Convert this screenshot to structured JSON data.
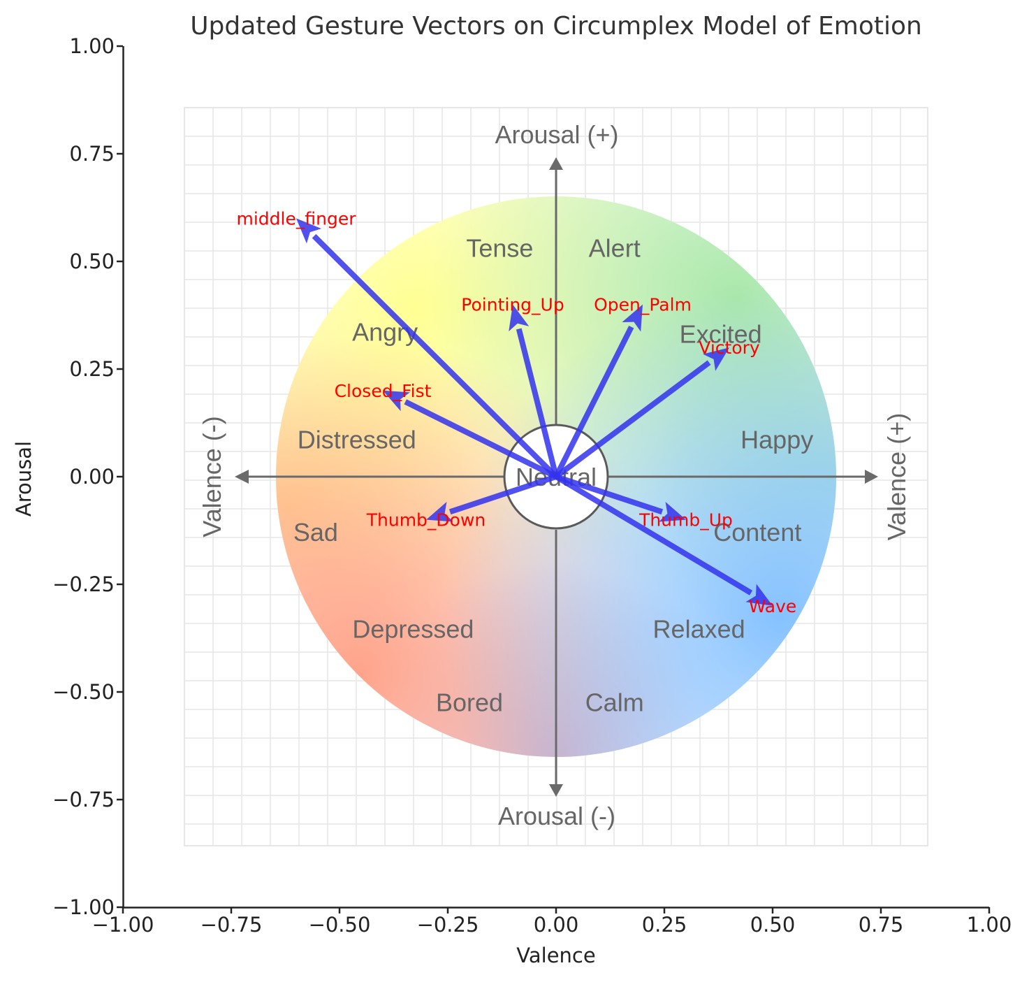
{
  "colors": {
    "arrow": "#3333ee",
    "gesture_text": "#ff0000",
    "diagram_text": "#666666",
    "axis": "#222222"
  },
  "chart_data": {
    "type": "scatter",
    "title": "Updated Gesture Vectors on Circumplex Model of Emotion",
    "xlabel": "Valence",
    "ylabel": "Arousal",
    "xlim": [
      -1.0,
      1.0
    ],
    "ylim": [
      -1.0,
      1.0
    ],
    "x_ticks": [
      "−1.00",
      "−0.75",
      "−0.50",
      "−0.25",
      "0.00",
      "0.25",
      "0.50",
      "0.75",
      "1.00"
    ],
    "y_ticks": [
      "1.00",
      "0.75",
      "0.50",
      "0.25",
      "0.00",
      "−0.25",
      "−0.50",
      "−0.75",
      "−1.00"
    ],
    "grid": false,
    "background_diagram": {
      "axis_labels": {
        "arousal_pos": "Arousal (+)",
        "arousal_neg": "Arousal (-)",
        "valence_pos": "Valence (+)",
        "valence_neg": "Valence (-)"
      },
      "center_label": "Neutral",
      "emotions": [
        {
          "name": "Tense",
          "x": -0.13,
          "y": 0.53
        },
        {
          "name": "Alert",
          "x": 0.135,
          "y": 0.53
        },
        {
          "name": "Angry",
          "x": -0.395,
          "y": 0.335
        },
        {
          "name": "Excited",
          "x": 0.38,
          "y": 0.33
        },
        {
          "name": "Distressed",
          "x": -0.46,
          "y": 0.085
        },
        {
          "name": "Happy",
          "x": 0.51,
          "y": 0.085
        },
        {
          "name": "Sad",
          "x": -0.555,
          "y": -0.13
        },
        {
          "name": "Content",
          "x": 0.465,
          "y": -0.13
        },
        {
          "name": "Depressed",
          "x": -0.33,
          "y": -0.355
        },
        {
          "name": "Relaxed",
          "x": 0.33,
          "y": -0.355
        },
        {
          "name": "Bored",
          "x": -0.2,
          "y": -0.525
        },
        {
          "name": "Calm",
          "x": 0.135,
          "y": -0.525
        }
      ]
    },
    "series": [
      {
        "points": [
          {
            "label": "middle_finger",
            "x": -0.6,
            "y": 0.6
          },
          {
            "label": "Pointing_Up",
            "x": -0.1,
            "y": 0.4
          },
          {
            "label": "Open_Palm",
            "x": 0.2,
            "y": 0.4
          },
          {
            "label": "Victory",
            "x": 0.4,
            "y": 0.3
          },
          {
            "label": "Closed_Fist",
            "x": -0.4,
            "y": 0.2
          },
          {
            "label": "Thumb_Down",
            "x": -0.3,
            "y": -0.1
          },
          {
            "label": "Thumb_Up",
            "x": 0.3,
            "y": -0.1
          },
          {
            "label": "Wave",
            "x": 0.5,
            "y": -0.3
          }
        ]
      }
    ]
  }
}
